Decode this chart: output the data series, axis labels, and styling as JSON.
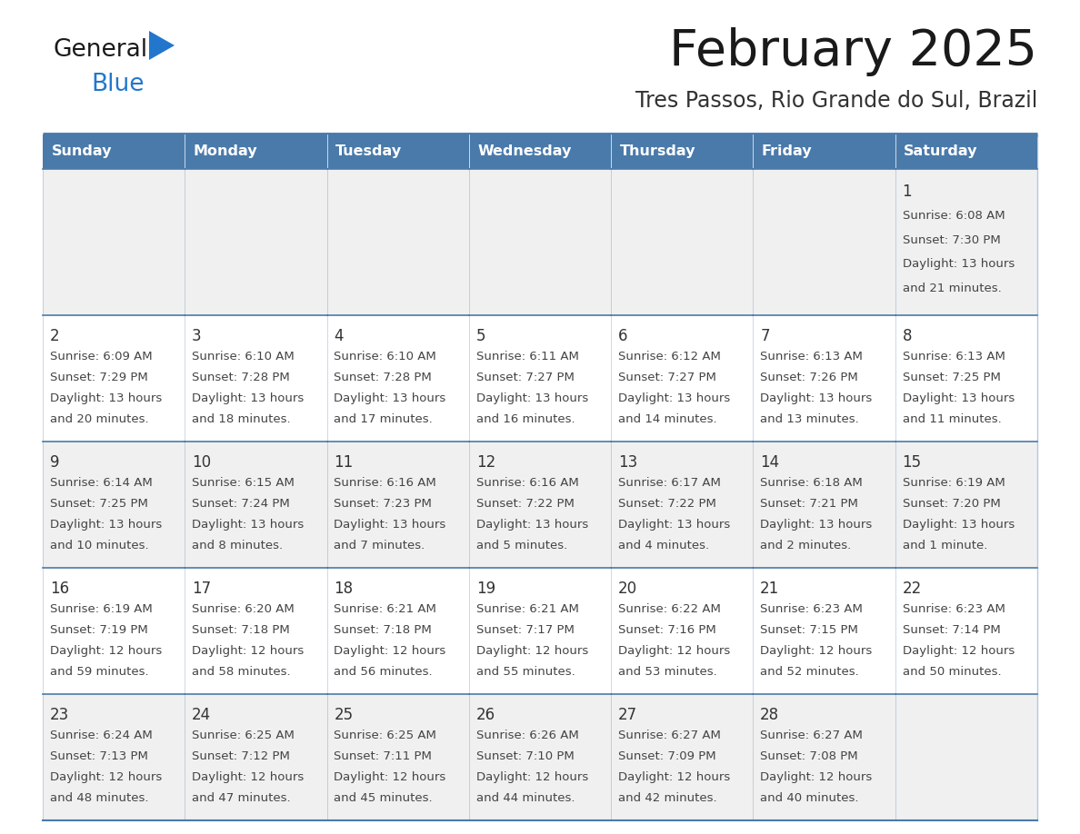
{
  "title": "February 2025",
  "subtitle": "Tres Passos, Rio Grande do Sul, Brazil",
  "header_bg": "#4a7aaa",
  "header_text": "#ffffff",
  "cell_bg_odd": "#f0f0f0",
  "cell_bg_even": "#ffffff",
  "border_color": "#4a7aaa",
  "text_color": "#333333",
  "info_color": "#444444",
  "days_of_week": [
    "Sunday",
    "Monday",
    "Tuesday",
    "Wednesday",
    "Thursday",
    "Friday",
    "Saturday"
  ],
  "title_color": "#1a1a1a",
  "subtitle_color": "#333333",
  "logo_color_general": "#1a1a1a",
  "logo_color_blue": "#2277cc",
  "logo_triangle_color": "#2277cc",
  "calendar": [
    [
      null,
      null,
      null,
      null,
      null,
      null,
      {
        "day": "1",
        "sunrise": "Sunrise: 6:08 AM",
        "sunset": "Sunset: 7:30 PM",
        "dl1": "Daylight: 13 hours",
        "dl2": "and 21 minutes."
      }
    ],
    [
      {
        "day": "2",
        "sunrise": "Sunrise: 6:09 AM",
        "sunset": "Sunset: 7:29 PM",
        "dl1": "Daylight: 13 hours",
        "dl2": "and 20 minutes."
      },
      {
        "day": "3",
        "sunrise": "Sunrise: 6:10 AM",
        "sunset": "Sunset: 7:28 PM",
        "dl1": "Daylight: 13 hours",
        "dl2": "and 18 minutes."
      },
      {
        "day": "4",
        "sunrise": "Sunrise: 6:10 AM",
        "sunset": "Sunset: 7:28 PM",
        "dl1": "Daylight: 13 hours",
        "dl2": "and 17 minutes."
      },
      {
        "day": "5",
        "sunrise": "Sunrise: 6:11 AM",
        "sunset": "Sunset: 7:27 PM",
        "dl1": "Daylight: 13 hours",
        "dl2": "and 16 minutes."
      },
      {
        "day": "6",
        "sunrise": "Sunrise: 6:12 AM",
        "sunset": "Sunset: 7:27 PM",
        "dl1": "Daylight: 13 hours",
        "dl2": "and 14 minutes."
      },
      {
        "day": "7",
        "sunrise": "Sunrise: 6:13 AM",
        "sunset": "Sunset: 7:26 PM",
        "dl1": "Daylight: 13 hours",
        "dl2": "and 13 minutes."
      },
      {
        "day": "8",
        "sunrise": "Sunrise: 6:13 AM",
        "sunset": "Sunset: 7:25 PM",
        "dl1": "Daylight: 13 hours",
        "dl2": "and 11 minutes."
      }
    ],
    [
      {
        "day": "9",
        "sunrise": "Sunrise: 6:14 AM",
        "sunset": "Sunset: 7:25 PM",
        "dl1": "Daylight: 13 hours",
        "dl2": "and 10 minutes."
      },
      {
        "day": "10",
        "sunrise": "Sunrise: 6:15 AM",
        "sunset": "Sunset: 7:24 PM",
        "dl1": "Daylight: 13 hours",
        "dl2": "and 8 minutes."
      },
      {
        "day": "11",
        "sunrise": "Sunrise: 6:16 AM",
        "sunset": "Sunset: 7:23 PM",
        "dl1": "Daylight: 13 hours",
        "dl2": "and 7 minutes."
      },
      {
        "day": "12",
        "sunrise": "Sunrise: 6:16 AM",
        "sunset": "Sunset: 7:22 PM",
        "dl1": "Daylight: 13 hours",
        "dl2": "and 5 minutes."
      },
      {
        "day": "13",
        "sunrise": "Sunrise: 6:17 AM",
        "sunset": "Sunset: 7:22 PM",
        "dl1": "Daylight: 13 hours",
        "dl2": "and 4 minutes."
      },
      {
        "day": "14",
        "sunrise": "Sunrise: 6:18 AM",
        "sunset": "Sunset: 7:21 PM",
        "dl1": "Daylight: 13 hours",
        "dl2": "and 2 minutes."
      },
      {
        "day": "15",
        "sunrise": "Sunrise: 6:19 AM",
        "sunset": "Sunset: 7:20 PM",
        "dl1": "Daylight: 13 hours",
        "dl2": "and 1 minute."
      }
    ],
    [
      {
        "day": "16",
        "sunrise": "Sunrise: 6:19 AM",
        "sunset": "Sunset: 7:19 PM",
        "dl1": "Daylight: 12 hours",
        "dl2": "and 59 minutes."
      },
      {
        "day": "17",
        "sunrise": "Sunrise: 6:20 AM",
        "sunset": "Sunset: 7:18 PM",
        "dl1": "Daylight: 12 hours",
        "dl2": "and 58 minutes."
      },
      {
        "day": "18",
        "sunrise": "Sunrise: 6:21 AM",
        "sunset": "Sunset: 7:18 PM",
        "dl1": "Daylight: 12 hours",
        "dl2": "and 56 minutes."
      },
      {
        "day": "19",
        "sunrise": "Sunrise: 6:21 AM",
        "sunset": "Sunset: 7:17 PM",
        "dl1": "Daylight: 12 hours",
        "dl2": "and 55 minutes."
      },
      {
        "day": "20",
        "sunrise": "Sunrise: 6:22 AM",
        "sunset": "Sunset: 7:16 PM",
        "dl1": "Daylight: 12 hours",
        "dl2": "and 53 minutes."
      },
      {
        "day": "21",
        "sunrise": "Sunrise: 6:23 AM",
        "sunset": "Sunset: 7:15 PM",
        "dl1": "Daylight: 12 hours",
        "dl2": "and 52 minutes."
      },
      {
        "day": "22",
        "sunrise": "Sunrise: 6:23 AM",
        "sunset": "Sunset: 7:14 PM",
        "dl1": "Daylight: 12 hours",
        "dl2": "and 50 minutes."
      }
    ],
    [
      {
        "day": "23",
        "sunrise": "Sunrise: 6:24 AM",
        "sunset": "Sunset: 7:13 PM",
        "dl1": "Daylight: 12 hours",
        "dl2": "and 48 minutes."
      },
      {
        "day": "24",
        "sunrise": "Sunrise: 6:25 AM",
        "sunset": "Sunset: 7:12 PM",
        "dl1": "Daylight: 12 hours",
        "dl2": "and 47 minutes."
      },
      {
        "day": "25",
        "sunrise": "Sunrise: 6:25 AM",
        "sunset": "Sunset: 7:11 PM",
        "dl1": "Daylight: 12 hours",
        "dl2": "and 45 minutes."
      },
      {
        "day": "26",
        "sunrise": "Sunrise: 6:26 AM",
        "sunset": "Sunset: 7:10 PM",
        "dl1": "Daylight: 12 hours",
        "dl2": "and 44 minutes."
      },
      {
        "day": "27",
        "sunrise": "Sunrise: 6:27 AM",
        "sunset": "Sunset: 7:09 PM",
        "dl1": "Daylight: 12 hours",
        "dl2": "and 42 minutes."
      },
      {
        "day": "28",
        "sunrise": "Sunrise: 6:27 AM",
        "sunset": "Sunset: 7:08 PM",
        "dl1": "Daylight: 12 hours",
        "dl2": "and 40 minutes."
      },
      null
    ]
  ]
}
